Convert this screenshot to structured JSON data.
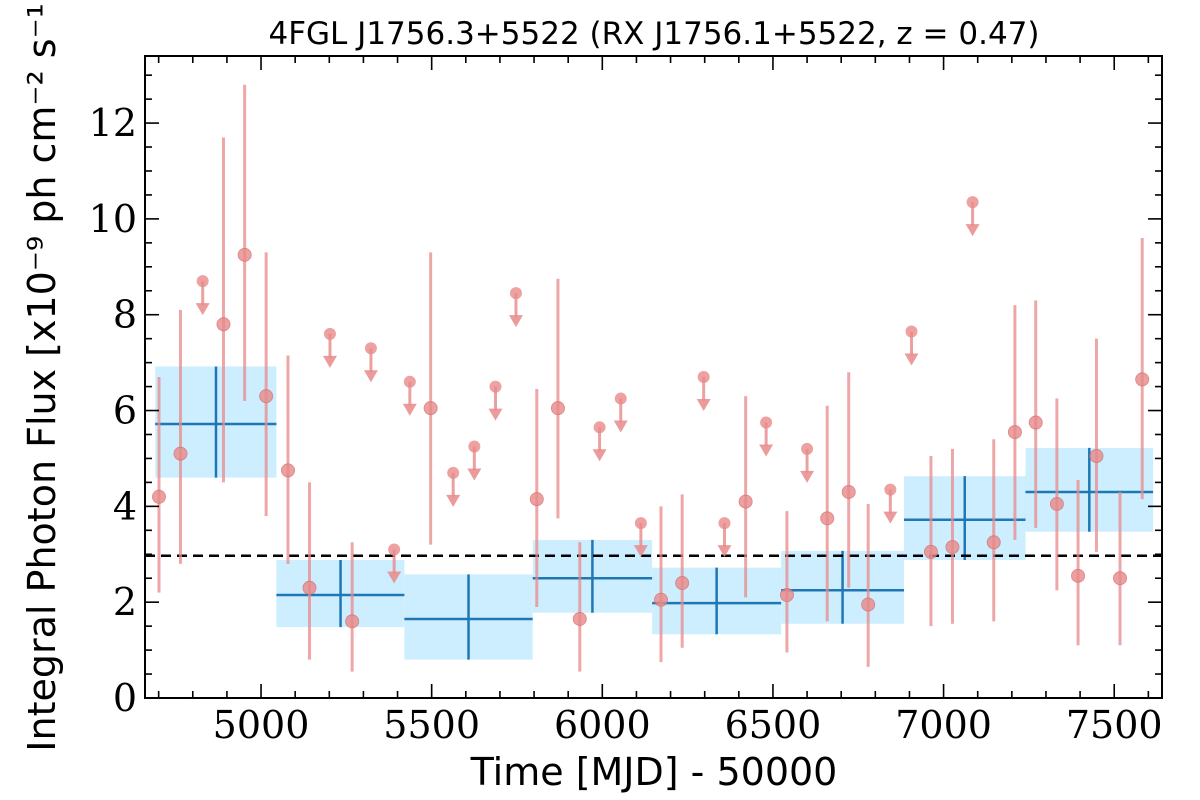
{
  "chart_data": {
    "type": "scatter",
    "title": "4FGL J1756.3+5522 (RX J1756.1+5522, z = 0.47)",
    "xlabel": "Time [MJD] - 50000",
    "ylabel": "Integral Photon Flux [x10⁻⁹ ph cm⁻² s⁻¹]",
    "xlim": [
      4660,
      7640
    ],
    "ylim": [
      0,
      13.4
    ],
    "xticks": [
      5000,
      5500,
      6000,
      6500,
      7000,
      7500
    ],
    "yticks": [
      0,
      2,
      4,
      6,
      8,
      10,
      12
    ],
    "grid": false,
    "mean_flux": 2.97,
    "colors": {
      "points": "#e88a8a",
      "blocks_fill": "#cdeeff",
      "blocks_line": "#1f77b4",
      "mean_line": "#000000"
    },
    "detections": [
      {
        "x": 4701,
        "y": 4.2,
        "ylo": 2.2,
        "yhi": 6.7
      },
      {
        "x": 4764,
        "y": 5.1,
        "ylo": 2.8,
        "yhi": 8.1
      },
      {
        "x": 4890,
        "y": 7.8,
        "ylo": 4.5,
        "yhi": 11.7
      },
      {
        "x": 4952,
        "y": 9.25,
        "ylo": 6.2,
        "yhi": 12.8
      },
      {
        "x": 5015,
        "y": 6.3,
        "ylo": 3.8,
        "yhi": 9.3
      },
      {
        "x": 5079,
        "y": 4.75,
        "ylo": 2.8,
        "yhi": 7.15
      },
      {
        "x": 5142,
        "y": 2.3,
        "ylo": 0.8,
        "yhi": 4.5
      },
      {
        "x": 5267,
        "y": 1.6,
        "ylo": 0.55,
        "yhi": 3.25
      },
      {
        "x": 5497,
        "y": 6.05,
        "ylo": 3.2,
        "yhi": 9.3
      },
      {
        "x": 5808,
        "y": 4.15,
        "ylo": 1.9,
        "yhi": 6.45
      },
      {
        "x": 5870,
        "y": 6.05,
        "ylo": 3.75,
        "yhi": 8.75
      },
      {
        "x": 5934,
        "y": 1.65,
        "ylo": 0.55,
        "yhi": 3.25
      },
      {
        "x": 6172,
        "y": 2.05,
        "ylo": 0.75,
        "yhi": 4.0
      },
      {
        "x": 6234,
        "y": 2.4,
        "ylo": 1.05,
        "yhi": 4.25
      },
      {
        "x": 6420,
        "y": 4.1,
        "ylo": 2.1,
        "yhi": 6.3
      },
      {
        "x": 6541,
        "y": 2.15,
        "ylo": 0.95,
        "yhi": 3.9
      },
      {
        "x": 6659,
        "y": 3.75,
        "ylo": 1.6,
        "yhi": 6.1
      },
      {
        "x": 6722,
        "y": 4.3,
        "ylo": 2.3,
        "yhi": 6.8
      },
      {
        "x": 6779,
        "y": 1.95,
        "ylo": 0.65,
        "yhi": 4.05
      },
      {
        "x": 6963,
        "y": 3.05,
        "ylo": 1.5,
        "yhi": 5.05
      },
      {
        "x": 7026,
        "y": 3.15,
        "ylo": 1.55,
        "yhi": 5.2
      },
      {
        "x": 7147,
        "y": 3.25,
        "ylo": 1.6,
        "yhi": 5.4
      },
      {
        "x": 7209,
        "y": 5.55,
        "ylo": 3.3,
        "yhi": 8.2
      },
      {
        "x": 7270,
        "y": 5.75,
        "ylo": 3.55,
        "yhi": 8.3
      },
      {
        "x": 7332,
        "y": 4.05,
        "ylo": 2.25,
        "yhi": 6.25
      },
      {
        "x": 7394,
        "y": 2.55,
        "ylo": 1.1,
        "yhi": 4.55
      },
      {
        "x": 7448,
        "y": 5.05,
        "ylo": 3.05,
        "yhi": 7.5
      },
      {
        "x": 7517,
        "y": 2.5,
        "ylo": 1.1,
        "yhi": 4.3
      },
      {
        "x": 7582,
        "y": 6.65,
        "ylo": 4.15,
        "yhi": 9.6
      }
    ],
    "upper_limits": [
      {
        "x": 4829,
        "y": 8.7
      },
      {
        "x": 5202,
        "y": 7.6
      },
      {
        "x": 5322,
        "y": 7.3
      },
      {
        "x": 5390,
        "y": 3.1
      },
      {
        "x": 5436,
        "y": 6.6
      },
      {
        "x": 5563,
        "y": 4.7
      },
      {
        "x": 5625,
        "y": 5.25
      },
      {
        "x": 5687,
        "y": 6.5
      },
      {
        "x": 5747,
        "y": 8.45
      },
      {
        "x": 5992,
        "y": 5.65
      },
      {
        "x": 6054,
        "y": 6.25
      },
      {
        "x": 6113,
        "y": 3.65
      },
      {
        "x": 6297,
        "y": 6.7
      },
      {
        "x": 6358,
        "y": 3.65
      },
      {
        "x": 6480,
        "y": 5.75
      },
      {
        "x": 6600,
        "y": 5.2
      },
      {
        "x": 6844,
        "y": 4.35
      },
      {
        "x": 6906,
        "y": 7.65
      },
      {
        "x": 7085,
        "y": 10.35
      }
    ],
    "bayesian_blocks": [
      {
        "x0": 4690,
        "x1": 5045,
        "xc": 4868,
        "y": 5.72,
        "ylo": 4.6,
        "yhi": 6.92
      },
      {
        "x0": 5045,
        "x1": 5420,
        "xc": 5233,
        "y": 2.15,
        "ylo": 1.48,
        "yhi": 2.88
      },
      {
        "x0": 5420,
        "x1": 5796,
        "xc": 5608,
        "y": 1.65,
        "ylo": 0.8,
        "yhi": 2.58
      },
      {
        "x0": 5796,
        "x1": 6146,
        "xc": 5971,
        "y": 2.5,
        "ylo": 1.78,
        "yhi": 3.3
      },
      {
        "x0": 6146,
        "x1": 6524,
        "xc": 6335,
        "y": 1.98,
        "ylo": 1.33,
        "yhi": 2.72
      },
      {
        "x0": 6524,
        "x1": 6884,
        "xc": 6704,
        "y": 2.25,
        "ylo": 1.55,
        "yhi": 3.07
      },
      {
        "x0": 6884,
        "x1": 7240,
        "xc": 7062,
        "y": 3.72,
        "ylo": 2.88,
        "yhi": 4.63
      },
      {
        "x0": 7240,
        "x1": 7614,
        "xc": 7427,
        "y": 4.3,
        "ylo": 3.47,
        "yhi": 5.22
      }
    ]
  }
}
